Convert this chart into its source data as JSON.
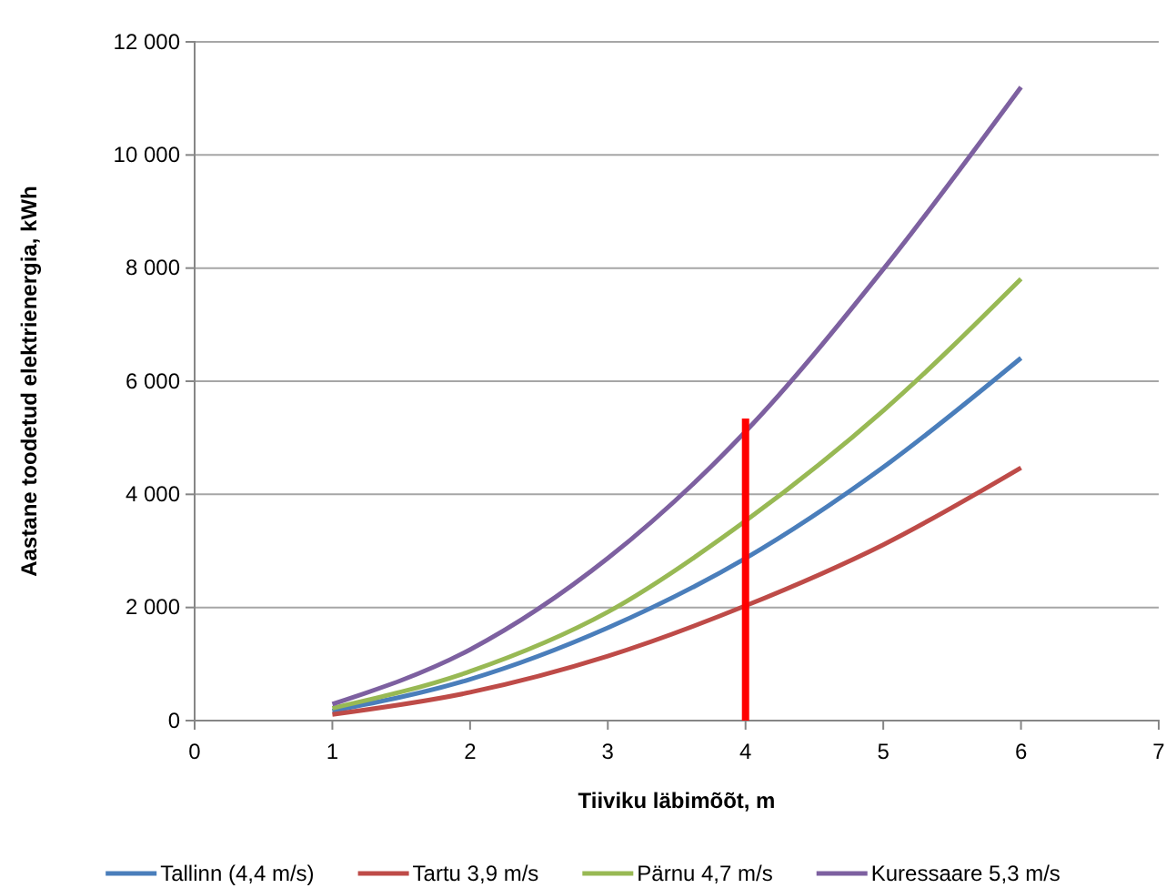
{
  "chart_data": {
    "type": "line",
    "xlabel": "Tiiviku läbimõõt, m",
    "ylabel": "Aastane toodetud elektrienergia, kWh",
    "x": [
      1,
      2,
      3,
      4,
      5,
      6
    ],
    "series": [
      {
        "name": "Tallinn (4,4 m/s)",
        "color": "#4a7ebb",
        "values": [
          170,
          730,
          1640,
          2870,
          4480,
          6410
        ]
      },
      {
        "name": "Tartu 3,9 m/s",
        "color": "#be4b48",
        "values": [
          110,
          500,
          1140,
          2030,
          3110,
          4470
        ]
      },
      {
        "name": "Pärnu 4,7 m/s",
        "color": "#98b954",
        "values": [
          220,
          870,
          1920,
          3530,
          5480,
          7810
        ]
      },
      {
        "name": "Kuressaare 5,3 m/s",
        "color": "#7d60a0",
        "values": [
          290,
          1255,
          2870,
          5110,
          7980,
          11200
        ]
      },
      {
        "color": "#ff0000",
        "x": [
          4,
          4
        ],
        "values": [
          0,
          5340
        ]
      }
    ],
    "xlim": [
      0,
      7
    ],
    "xticks": [
      0,
      1,
      2,
      3,
      4,
      5,
      6,
      7
    ],
    "ylim": [
      0,
      12000
    ],
    "yticks": [
      {
        "value": 0,
        "label": "0"
      },
      {
        "value": 2000,
        "label": "2 000"
      },
      {
        "value": 4000,
        "label": "4 000"
      },
      {
        "value": 6000,
        "label": "6 000"
      },
      {
        "value": 8000,
        "label": "8 000"
      },
      {
        "value": 10000,
        "label": "10 000"
      },
      {
        "value": 12000,
        "label": "12 000"
      }
    ],
    "grid": "y",
    "legend": "bottom",
    "marker": "none",
    "line_style": "solid"
  }
}
